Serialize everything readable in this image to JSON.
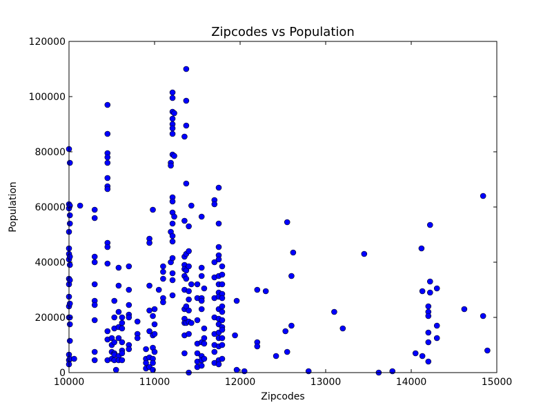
{
  "chart_data": {
    "type": "scatter",
    "title": "Zipcodes vs Population",
    "xlabel": "Zipcodes",
    "ylabel": "Population",
    "xlim": [
      10000,
      15000
    ],
    "ylim": [
      0,
      120000
    ],
    "xticks": [
      10000,
      11000,
      12000,
      13000,
      14000,
      15000
    ],
    "xtick_labels": [
      "10000",
      "11000",
      "12000",
      "13000",
      "14000",
      "15000"
    ],
    "yticks": [
      0,
      20000,
      40000,
      60000,
      80000,
      100000,
      120000
    ],
    "ytick_labels": [
      "0",
      "20000",
      "40000",
      "60000",
      "80000",
      "100000",
      "120000"
    ],
    "grid": false,
    "marker_color": "#0000ff",
    "marker_edge": "#000000",
    "points": [
      [
        10000,
        81000
      ],
      [
        10000,
        61000
      ],
      [
        10000,
        59500
      ],
      [
        10000,
        51000
      ],
      [
        10000,
        45000
      ],
      [
        10000,
        43000
      ],
      [
        10000,
        41000
      ],
      [
        10000,
        34000
      ],
      [
        10000,
        32000
      ],
      [
        10000,
        27500
      ],
      [
        10000,
        24000
      ],
      [
        10000,
        20000
      ],
      [
        10000,
        6500
      ],
      [
        10000,
        4500
      ],
      [
        10000,
        3000
      ],
      [
        10010,
        76000
      ],
      [
        10010,
        60500
      ],
      [
        10010,
        57000
      ],
      [
        10010,
        54000
      ],
      [
        10010,
        42000
      ],
      [
        10010,
        39000
      ],
      [
        10010,
        33500
      ],
      [
        10010,
        25000
      ],
      [
        10010,
        20000
      ],
      [
        10010,
        17500
      ],
      [
        10010,
        11500
      ],
      [
        10010,
        5000
      ],
      [
        10060,
        5000
      ],
      [
        10130,
        60500
      ],
      [
        10300,
        59000
      ],
      [
        10300,
        56000
      ],
      [
        10300,
        42000
      ],
      [
        10300,
        40000
      ],
      [
        10300,
        32000
      ],
      [
        10300,
        26000
      ],
      [
        10300,
        24500
      ],
      [
        10300,
        19000
      ],
      [
        10300,
        7500
      ],
      [
        10300,
        4500
      ],
      [
        10450,
        97000
      ],
      [
        10450,
        86500
      ],
      [
        10450,
        79500
      ],
      [
        10450,
        78000
      ],
      [
        10450,
        76000
      ],
      [
        10450,
        70500
      ],
      [
        10450,
        67500
      ],
      [
        10450,
        66500
      ],
      [
        10450,
        47000
      ],
      [
        10450,
        45500
      ],
      [
        10450,
        39500
      ],
      [
        10450,
        15000
      ],
      [
        10450,
        12000
      ],
      [
        10450,
        4500
      ],
      [
        10500,
        12500
      ],
      [
        10500,
        10000
      ],
      [
        10500,
        7500
      ],
      [
        10500,
        5000
      ],
      [
        10530,
        26000
      ],
      [
        10530,
        20000
      ],
      [
        10530,
        16000
      ],
      [
        10530,
        11000
      ],
      [
        10530,
        7000
      ],
      [
        10530,
        6500
      ],
      [
        10530,
        4500
      ],
      [
        10550,
        1000
      ],
      [
        10580,
        38000
      ],
      [
        10580,
        31500
      ],
      [
        10580,
        22000
      ],
      [
        10580,
        16500
      ],
      [
        10580,
        12500
      ],
      [
        10580,
        6000
      ],
      [
        10580,
        4500
      ],
      [
        10620,
        20000
      ],
      [
        10620,
        18000
      ],
      [
        10620,
        16000
      ],
      [
        10620,
        11000
      ],
      [
        10620,
        8000
      ],
      [
        10620,
        7000
      ],
      [
        10620,
        4500
      ],
      [
        10700,
        38500
      ],
      [
        10700,
        30000
      ],
      [
        10700,
        24500
      ],
      [
        10700,
        21000
      ],
      [
        10700,
        20000
      ],
      [
        10700,
        10000
      ],
      [
        10700,
        8500
      ],
      [
        10800,
        18500
      ],
      [
        10800,
        14000
      ],
      [
        10800,
        12500
      ],
      [
        10900,
        8500
      ],
      [
        10900,
        5000
      ],
      [
        10900,
        3500
      ],
      [
        10900,
        1500
      ],
      [
        10940,
        48500
      ],
      [
        10940,
        47000
      ],
      [
        10940,
        31500
      ],
      [
        10940,
        22500
      ],
      [
        10940,
        15000
      ],
      [
        10940,
        5500
      ],
      [
        10940,
        2000
      ],
      [
        10980,
        59000
      ],
      [
        10980,
        20500
      ],
      [
        10980,
        13500
      ],
      [
        10980,
        9000
      ],
      [
        10980,
        5000
      ],
      [
        10980,
        3500
      ],
      [
        10980,
        1000
      ],
      [
        11000,
        23000
      ],
      [
        11000,
        17500
      ],
      [
        11000,
        14000
      ],
      [
        11000,
        7500
      ],
      [
        11050,
        30000
      ],
      [
        11100,
        38500
      ],
      [
        11100,
        36500
      ],
      [
        11100,
        34000
      ],
      [
        11100,
        27000
      ],
      [
        11100,
        25500
      ],
      [
        11190,
        76000
      ],
      [
        11190,
        75000
      ],
      [
        11190,
        51000
      ],
      [
        11190,
        40000
      ],
      [
        11210,
        101500
      ],
      [
        11210,
        99500
      ],
      [
        11210,
        94500
      ],
      [
        11210,
        92000
      ],
      [
        11210,
        90000
      ],
      [
        11210,
        88500
      ],
      [
        11210,
        86500
      ],
      [
        11210,
        79000
      ],
      [
        11210,
        63500
      ],
      [
        11210,
        62000
      ],
      [
        11210,
        58000
      ],
      [
        11210,
        54000
      ],
      [
        11210,
        49500
      ],
      [
        11210,
        47500
      ],
      [
        11210,
        41500
      ],
      [
        11210,
        36000
      ],
      [
        11210,
        33500
      ],
      [
        11210,
        28000
      ],
      [
        11230,
        94000
      ],
      [
        11230,
        78500
      ],
      [
        11230,
        56500
      ],
      [
        11350,
        85500
      ],
      [
        11350,
        55000
      ],
      [
        11350,
        42000
      ],
      [
        11350,
        39000
      ],
      [
        11350,
        37500
      ],
      [
        11350,
        35000
      ],
      [
        11350,
        30000
      ],
      [
        11350,
        23000
      ],
      [
        11350,
        19500
      ],
      [
        11350,
        18000
      ],
      [
        11350,
        13500
      ],
      [
        11350,
        7000
      ],
      [
        11370,
        110000
      ],
      [
        11370,
        98500
      ],
      [
        11370,
        89500
      ],
      [
        11370,
        68500
      ],
      [
        11370,
        43000
      ],
      [
        11370,
        37000
      ],
      [
        11370,
        34000
      ],
      [
        11370,
        24000
      ],
      [
        11370,
        18000
      ],
      [
        11400,
        53000
      ],
      [
        11400,
        44000
      ],
      [
        11400,
        38500
      ],
      [
        11400,
        29500
      ],
      [
        11400,
        26500
      ],
      [
        11400,
        22500
      ],
      [
        11400,
        18500
      ],
      [
        11400,
        14000
      ],
      [
        11400,
        0
      ],
      [
        11430,
        60500
      ],
      [
        11430,
        32000
      ],
      [
        11430,
        18000
      ],
      [
        11500,
        32000
      ],
      [
        11500,
        27000
      ],
      [
        11500,
        19000
      ],
      [
        11500,
        10500
      ],
      [
        11500,
        7000
      ],
      [
        11500,
        4000
      ],
      [
        11500,
        2000
      ],
      [
        11550,
        56500
      ],
      [
        11550,
        38000
      ],
      [
        11550,
        35000
      ],
      [
        11550,
        27000
      ],
      [
        11550,
        26000
      ],
      [
        11550,
        23000
      ],
      [
        11550,
        11000
      ],
      [
        11550,
        6000
      ],
      [
        11550,
        4500
      ],
      [
        11550,
        2500
      ],
      [
        11580,
        30500
      ],
      [
        11580,
        16000
      ],
      [
        11580,
        12500
      ],
      [
        11580,
        10500
      ],
      [
        11580,
        5000
      ],
      [
        11700,
        62500
      ],
      [
        11700,
        61000
      ],
      [
        11700,
        40000
      ],
      [
        11700,
        34500
      ],
      [
        11700,
        27000
      ],
      [
        11700,
        20000
      ],
      [
        11700,
        14000
      ],
      [
        11700,
        10000
      ],
      [
        11700,
        7500
      ],
      [
        11700,
        3500
      ],
      [
        11750,
        67000
      ],
      [
        11750,
        54000
      ],
      [
        11750,
        45500
      ],
      [
        11750,
        42500
      ],
      [
        11750,
        41000
      ],
      [
        11750,
        35000
      ],
      [
        11750,
        32000
      ],
      [
        11750,
        29000
      ],
      [
        11750,
        27500
      ],
      [
        11750,
        23000
      ],
      [
        11750,
        19500
      ],
      [
        11750,
        17500
      ],
      [
        11750,
        14500
      ],
      [
        11750,
        12500
      ],
      [
        11750,
        9500
      ],
      [
        11750,
        4500
      ],
      [
        11750,
        3000
      ],
      [
        11790,
        38500
      ],
      [
        11790,
        35500
      ],
      [
        11790,
        32000
      ],
      [
        11790,
        28500
      ],
      [
        11790,
        27000
      ],
      [
        11790,
        24000
      ],
      [
        11790,
        22000
      ],
      [
        11790,
        19000
      ],
      [
        11790,
        16500
      ],
      [
        11790,
        15500
      ],
      [
        11790,
        12500
      ],
      [
        11790,
        10000
      ],
      [
        11790,
        5000
      ],
      [
        11940,
        13500
      ],
      [
        11960,
        26000
      ],
      [
        11960,
        1000
      ],
      [
        12050,
        500
      ],
      [
        12200,
        30000
      ],
      [
        12200,
        11000
      ],
      [
        12200,
        9500
      ],
      [
        12300,
        29500
      ],
      [
        12420,
        6000
      ],
      [
        12530,
        15000
      ],
      [
        12550,
        54500
      ],
      [
        12550,
        7500
      ],
      [
        12600,
        35000
      ],
      [
        12600,
        17000
      ],
      [
        12620,
        43500
      ],
      [
        12800,
        500
      ],
      [
        13100,
        22000
      ],
      [
        13200,
        16000
      ],
      [
        13450,
        43000
      ],
      [
        13620,
        0
      ],
      [
        13780,
        500
      ],
      [
        14050,
        7000
      ],
      [
        14120,
        45000
      ],
      [
        14130,
        29500
      ],
      [
        14130,
        6000
      ],
      [
        14200,
        24000
      ],
      [
        14200,
        22000
      ],
      [
        14200,
        20500
      ],
      [
        14200,
        14500
      ],
      [
        14200,
        11000
      ],
      [
        14200,
        4000
      ],
      [
        14220,
        53500
      ],
      [
        14220,
        33000
      ],
      [
        14220,
        29000
      ],
      [
        14300,
        30500
      ],
      [
        14300,
        17000
      ],
      [
        14300,
        12500
      ],
      [
        14620,
        23000
      ],
      [
        14840,
        64000
      ],
      [
        14840,
        20500
      ],
      [
        14890,
        8000
      ]
    ]
  }
}
